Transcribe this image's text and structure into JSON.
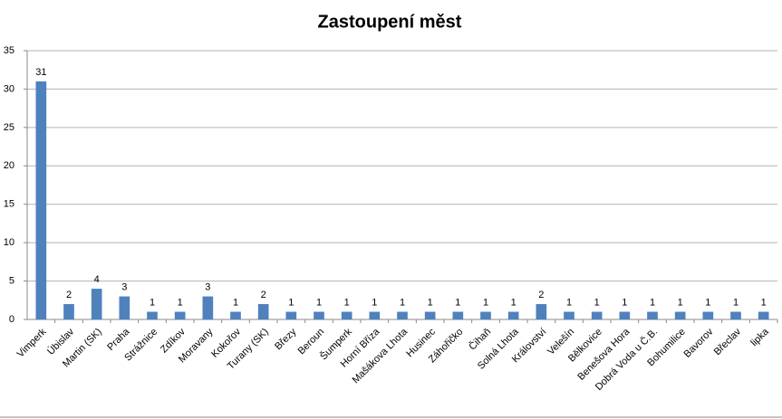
{
  "chart_data": {
    "type": "bar",
    "title": "Zastoupení měst",
    "categories": [
      "Vimperk",
      "Úbislav",
      "Martin (SK)",
      "Praha",
      "Strážnice",
      "Zdíkov",
      "Moravany",
      "Kokořov",
      "Turany (SK)",
      "Březy",
      "Beroun",
      "Šumperk",
      "Horní Bříza",
      "Mašákova Lhota",
      "Husinec",
      "Záhořičko",
      "Čihaň",
      "Solná Lhota",
      "Království",
      "Velešín",
      "Bělkovice",
      "Benešova Hora",
      "Dobrá Voda u Č.B.",
      "Bohumilice",
      "Bavorov",
      "Břeclav",
      "lipka"
    ],
    "values": [
      31,
      2,
      4,
      3,
      1,
      1,
      3,
      1,
      2,
      1,
      1,
      1,
      1,
      1,
      1,
      1,
      1,
      1,
      2,
      1,
      1,
      1,
      1,
      1,
      1,
      1,
      1
    ],
    "color": "#4f81bd",
    "ylim": [
      0,
      35
    ],
    "yticks": [
      0,
      5,
      10,
      15,
      20,
      25,
      30,
      35
    ],
    "grid": true
  }
}
